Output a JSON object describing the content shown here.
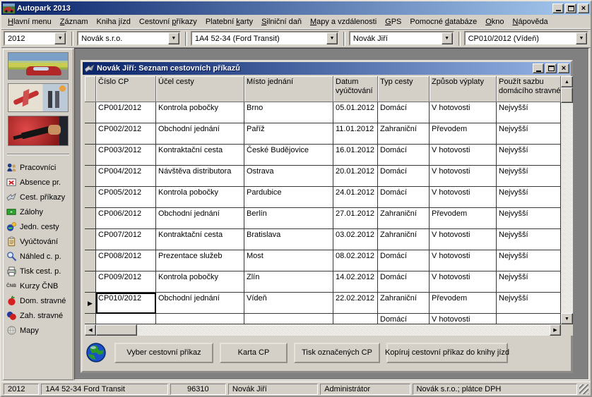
{
  "window": {
    "title": "Autopark 2013"
  },
  "menu": {
    "items": [
      {
        "label": "Hlavní menu",
        "mnemonic": 0
      },
      {
        "label": "Záznam",
        "mnemonic": 0
      },
      {
        "label": "Kniha jízd",
        "mnemonic": 6
      },
      {
        "label": "Cestovní příkazy",
        "mnemonic": 9
      },
      {
        "label": "Platební karty",
        "mnemonic": 9
      },
      {
        "label": "Silniční daň",
        "mnemonic": 0
      },
      {
        "label": "Mapy a vzdálenosti",
        "mnemonic": 0
      },
      {
        "label": "GPS",
        "mnemonic": 0
      },
      {
        "label": "Pomocné databáze",
        "mnemonic": 8
      },
      {
        "label": "Okno",
        "mnemonic": 0
      },
      {
        "label": "Nápověda",
        "mnemonic": 0
      }
    ]
  },
  "toolbar": {
    "combos": [
      {
        "name": "year",
        "value": "2012"
      },
      {
        "name": "company",
        "value": "Novák s.r.o."
      },
      {
        "name": "vehicle",
        "value": "1A4 52-34 (Ford Transit)"
      },
      {
        "name": "employee",
        "value": "Novák Jiří"
      },
      {
        "name": "travel-order",
        "value": "CP010/2012 (Vídeň)"
      }
    ]
  },
  "sidebar": {
    "items": [
      {
        "label": "Pracovníci",
        "icon": "workers-icon"
      },
      {
        "label": "Absence pr.",
        "icon": "absence-icon"
      },
      {
        "label": "Cest. příkazy",
        "icon": "orders-icon"
      },
      {
        "label": "Zálohy",
        "icon": "advances-icon"
      },
      {
        "label": "Jedn. cesty",
        "icon": "trips-icon"
      },
      {
        "label": "Vyúčtování",
        "icon": "billing-icon"
      },
      {
        "label": "Náhled c. p.",
        "icon": "preview-icon"
      },
      {
        "label": "Tisk cest. p.",
        "icon": "printer-icon"
      },
      {
        "label": "Kurzy ČNB",
        "icon": "cnb-icon"
      },
      {
        "label": "Dom. stravné",
        "icon": "apple-icon"
      },
      {
        "label": "Zah. stravné",
        "icon": "berries-icon"
      },
      {
        "label": "Mapy",
        "icon": "globe-gray-icon"
      }
    ]
  },
  "child_window": {
    "title": "Novák Jiří: Seznam cestovních příkazů",
    "grid": {
      "columns": [
        "Číslo CP",
        "Účel cesty",
        "Místo jednání",
        "Datum\nvyúčtování",
        "Typ cesty",
        "Způsob výplaty",
        "Použít sazbu\ndomácího stravného"
      ],
      "rows": [
        [
          "CP001/2012",
          "Kontrola pobočky",
          "Brno",
          "05.01.2012",
          "Domácí",
          "V hotovosti",
          "Nejvyšší"
        ],
        [
          "CP002/2012",
          "Obchodní jednání",
          "Paříž",
          "11.01.2012",
          "Zahraniční",
          "Převodem",
          "Nejvyšší"
        ],
        [
          "CP003/2012",
          "Kontraktační cesta",
          "České Budějovice",
          "16.01.2012",
          "Domácí",
          "V hotovosti",
          "Nejvyšší"
        ],
        [
          "CP004/2012",
          "Návštěva distributora",
          "Ostrava",
          "20.01.2012",
          "Domácí",
          "V hotovosti",
          "Nejvyšší"
        ],
        [
          "CP005/2012",
          "Kontrola pobočky",
          "Pardubice",
          "24.01.2012",
          "Domácí",
          "V hotovosti",
          "Nejvyšší"
        ],
        [
          "CP006/2012",
          "Obchodní jednání",
          "Berlín",
          "27.01.2012",
          "Zahraniční",
          "Převodem",
          "Nejvyšší"
        ],
        [
          "CP007/2012",
          "Kontraktační cesta",
          "Bratislava",
          "03.02.2012",
          "Zahraniční",
          "V hotovosti",
          "Nejvyšší"
        ],
        [
          "CP008/2012",
          "Prezentace služeb",
          "Most",
          "08.02.2012",
          "Domácí",
          "V hotovosti",
          "Nejvyšší"
        ],
        [
          "CP009/2012",
          "Kontrola pobočky",
          "Zlín",
          "14.02.2012",
          "Domácí",
          "V hotovosti",
          "Nejvyšší"
        ],
        [
          "CP010/2012",
          "Obchodní jednání",
          "Vídeň",
          "22.02.2012",
          "Zahraniční",
          "Převodem",
          "Nejvyšší"
        ]
      ],
      "partial_row": [
        "",
        "",
        "",
        "",
        "Domácí",
        "V hotovosti",
        ""
      ],
      "selected_row_index": 9
    },
    "buttons": [
      "Vyber cestovní příkaz",
      "Karta CP",
      "Tisk označených CP",
      "Kopíruj cestovní příkaz do knihy jízd"
    ]
  },
  "statusbar": {
    "segments": [
      "2012",
      "1A4 52-34  Ford Transit",
      "96310",
      "Novák Jiří",
      "Administrátor",
      "Novák s.r.o.;  plátce DPH"
    ]
  },
  "icons": {
    "scroll_up": "▲",
    "scroll_down": "▼",
    "scroll_left": "◀",
    "scroll_right": "▶",
    "row_selector": "▶",
    "combo_arrow": "▼"
  },
  "colors": {
    "titlebar_from": "#0a246a",
    "titlebar_to": "#a6caf0",
    "chrome": "#d4d0c8",
    "mdi_background": "#808080"
  }
}
